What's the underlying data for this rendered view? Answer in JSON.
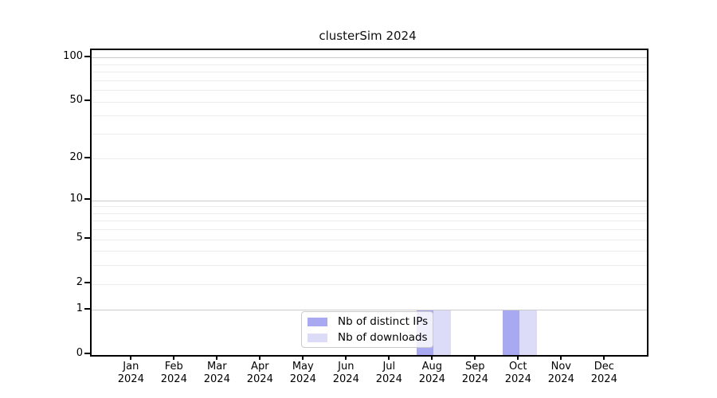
{
  "chart_data": {
    "type": "bar",
    "title": "clusterSim 2024",
    "categories": [
      "Jan 2024",
      "Feb 2024",
      "Mar 2024",
      "Apr 2024",
      "May 2024",
      "Jun 2024",
      "Jul 2024",
      "Aug 2024",
      "Sep 2024",
      "Oct 2024",
      "Nov 2024",
      "Dec 2024"
    ],
    "series": [
      {
        "name": "Nb of distinct IPs",
        "color": "#a9a9f2",
        "values": [
          0,
          0,
          0,
          0,
          0,
          0,
          0,
          1,
          0,
          1,
          0,
          0
        ]
      },
      {
        "name": "Nb of downloads",
        "color": "#dcdcf9",
        "values": [
          0,
          0,
          0,
          0,
          0,
          0,
          0,
          1,
          0,
          1,
          0,
          0
        ]
      }
    ],
    "xlabel": "",
    "ylabel": "",
    "yscale": "log1p",
    "ylim": [
      0,
      112
    ],
    "y_tick_labels": [
      0,
      1,
      2,
      5,
      10,
      20,
      50,
      100
    ],
    "y_major_gridlines": [
      1,
      10,
      100
    ],
    "y_minor_gridlines": [
      2,
      3,
      4,
      5,
      6,
      7,
      8,
      9,
      20,
      30,
      40,
      50,
      60,
      70,
      80,
      90
    ],
    "grid": true,
    "legend_position": "lower center",
    "colors": {
      "major_grid": "#cbcbcb",
      "minor_grid": "#ececec",
      "axis": "#000000",
      "background": "#ffffff"
    }
  }
}
